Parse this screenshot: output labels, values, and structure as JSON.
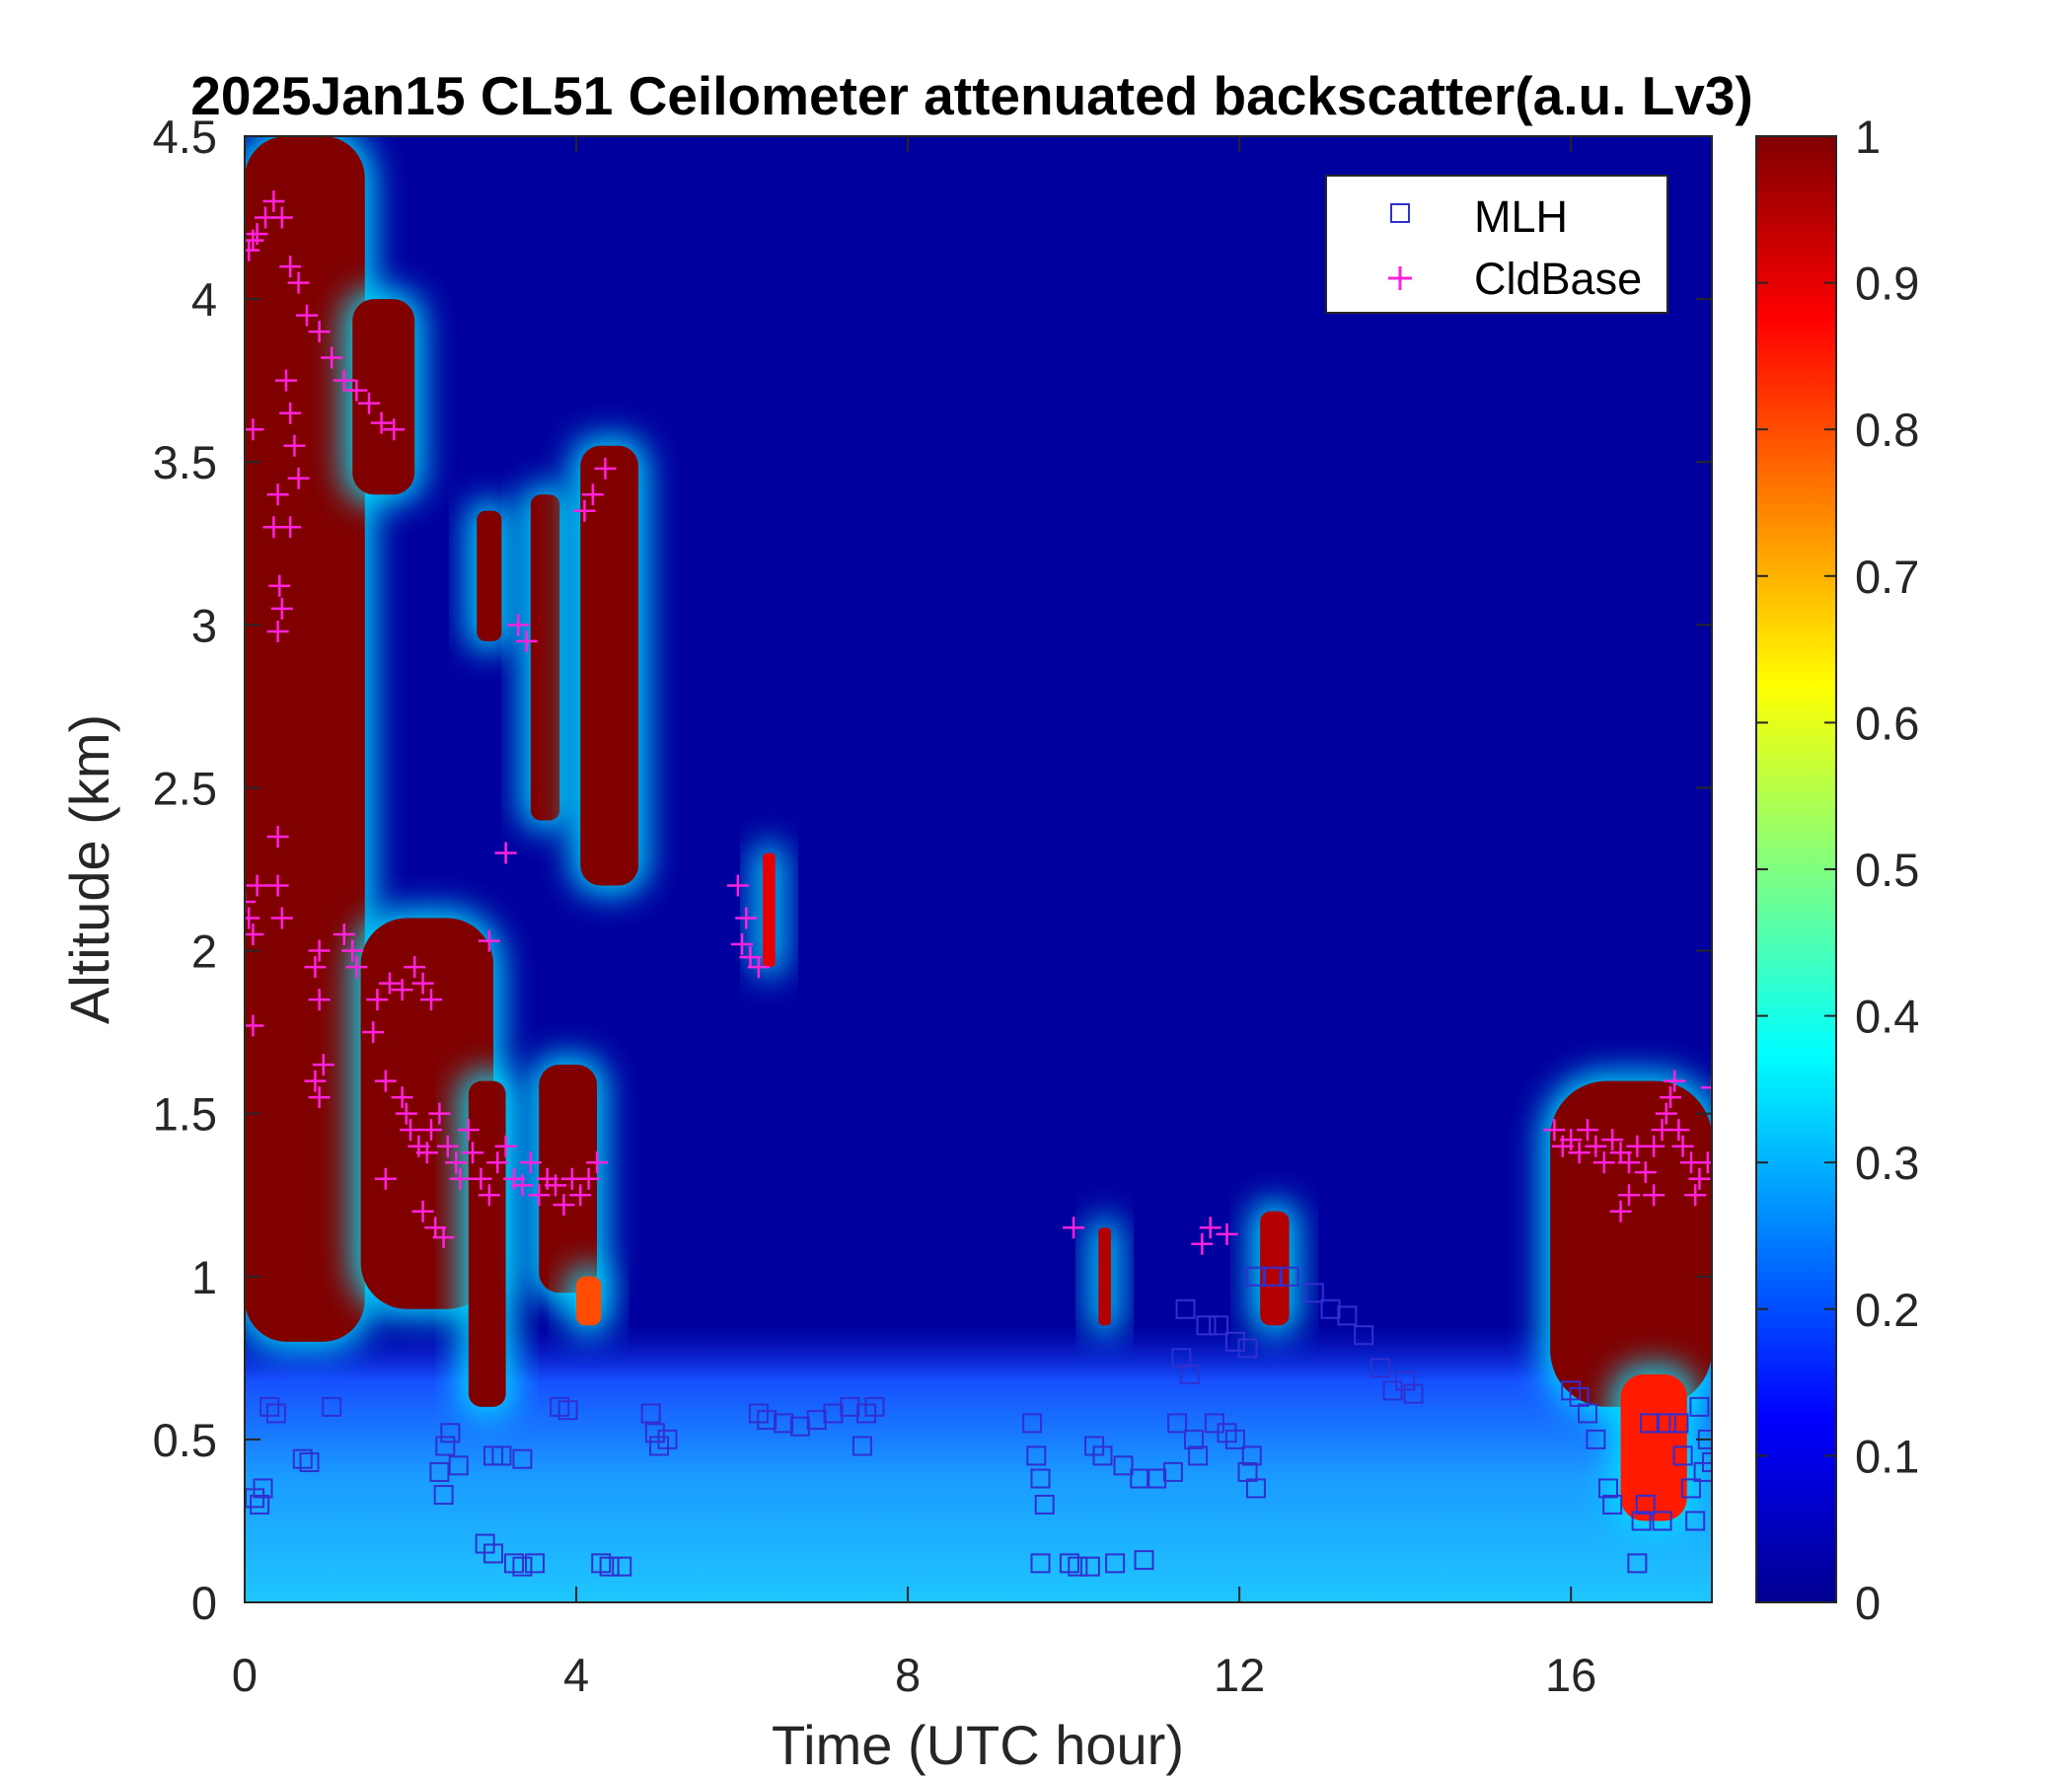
{
  "chart_data": {
    "type": "heatmap",
    "title": "2025Jan15 CL51 Ceilometer attenuated backscatter(a.u. Lv3)",
    "xlabel": "Time (UTC hour)",
    "ylabel": "Altitude (km)",
    "xlim": [
      0,
      17.7
    ],
    "ylim": [
      0,
      4.5
    ],
    "x_ticks": [
      0,
      4,
      8,
      12,
      16
    ],
    "y_ticks": [
      0,
      0.5,
      1,
      1.5,
      2,
      2.5,
      3,
      3.5,
      4,
      4.5
    ],
    "x_tick_labels": [
      "0",
      "4",
      "8",
      "12",
      "16"
    ],
    "y_tick_labels": [
      "0",
      "0.5",
      "1",
      "1.5",
      "2",
      "2.5",
      "3",
      "3.5",
      "4",
      "4.5"
    ],
    "colorbar": {
      "colormap": "jet",
      "range": [
        0,
        1
      ],
      "ticks": [
        0,
        0.1,
        0.2,
        0.3,
        0.4,
        0.5,
        0.6,
        0.7,
        0.8,
        0.9,
        1
      ],
      "tick_labels": [
        "0",
        "0.1",
        "0.2",
        "0.3",
        "0.4",
        "0.5",
        "0.6",
        "0.7",
        "0.8",
        "0.9",
        "1"
      ]
    },
    "grid": false,
    "legend_position": "top-right",
    "legend": [
      {
        "name": "MLH",
        "marker": "square",
        "color": "#3030d0"
      },
      {
        "name": "CldBase",
        "marker": "plus",
        "color": "#ff22dd"
      }
    ],
    "background_value": 0.02,
    "surface_layer": {
      "top_km": 0.85,
      "base_value": 0.3
    },
    "regions": [
      {
        "x0": 0.0,
        "x1": 1.45,
        "y0": 0.8,
        "y1": 4.5,
        "value": 1.0
      },
      {
        "x0": 1.3,
        "x1": 2.05,
        "y0": 3.4,
        "y1": 4.0,
        "value": 1.0
      },
      {
        "x0": 1.4,
        "x1": 3.0,
        "y0": 0.9,
        "y1": 2.1,
        "value": 1.0
      },
      {
        "x0": 2.7,
        "x1": 3.15,
        "y0": 0.6,
        "y1": 1.6,
        "value": 1.0
      },
      {
        "x0": 3.55,
        "x1": 4.25,
        "y0": 0.95,
        "y1": 1.65,
        "value": 1.0
      },
      {
        "x0": 2.8,
        "x1": 3.1,
        "y0": 2.95,
        "y1": 3.35,
        "value": 1.0
      },
      {
        "x0": 3.45,
        "x1": 3.8,
        "y0": 2.4,
        "y1": 3.4,
        "value": 1.0
      },
      {
        "x0": 4.05,
        "x1": 4.75,
        "y0": 2.2,
        "y1": 3.55,
        "value": 1.0
      },
      {
        "x0": 4.0,
        "x1": 4.3,
        "y0": 0.85,
        "y1": 1.0,
        "value": 0.8
      },
      {
        "x0": 6.25,
        "x1": 6.4,
        "y0": 1.95,
        "y1": 2.3,
        "value": 0.9
      },
      {
        "x0": 10.3,
        "x1": 10.45,
        "y0": 0.85,
        "y1": 1.15,
        "value": 0.95
      },
      {
        "x0": 12.25,
        "x1": 12.6,
        "y0": 0.85,
        "y1": 1.2,
        "value": 0.95
      },
      {
        "x0": 15.75,
        "x1": 17.7,
        "y0": 0.6,
        "y1": 1.6,
        "value": 1.0
      },
      {
        "x0": 16.6,
        "x1": 17.4,
        "y0": 0.25,
        "y1": 0.7,
        "value": 0.85
      }
    ],
    "series": [
      {
        "name": "MLH",
        "points": [
          [
            0.12,
            0.32
          ],
          [
            0.18,
            0.3
          ],
          [
            0.22,
            0.35
          ],
          [
            0.3,
            0.6
          ],
          [
            0.38,
            0.58
          ],
          [
            0.7,
            0.44
          ],
          [
            0.78,
            0.43
          ],
          [
            1.05,
            0.6
          ],
          [
            2.35,
            0.4
          ],
          [
            2.4,
            0.33
          ],
          [
            2.42,
            0.48
          ],
          [
            2.48,
            0.52
          ],
          [
            2.58,
            0.42
          ],
          [
            3.0,
            0.45
          ],
          [
            3.1,
            0.45
          ],
          [
            3.35,
            0.44
          ],
          [
            2.9,
            0.18
          ],
          [
            3.0,
            0.15
          ],
          [
            3.25,
            0.12
          ],
          [
            3.35,
            0.11
          ],
          [
            3.5,
            0.12
          ],
          [
            3.8,
            0.6
          ],
          [
            3.9,
            0.59
          ],
          [
            4.3,
            0.12
          ],
          [
            4.4,
            0.11
          ],
          [
            4.55,
            0.11
          ],
          [
            4.9,
            0.58
          ],
          [
            4.95,
            0.52
          ],
          [
            5.0,
            0.48
          ],
          [
            5.1,
            0.5
          ],
          [
            6.2,
            0.58
          ],
          [
            6.3,
            0.56
          ],
          [
            6.5,
            0.55
          ],
          [
            6.7,
            0.54
          ],
          [
            6.9,
            0.56
          ],
          [
            7.1,
            0.58
          ],
          [
            7.3,
            0.6
          ],
          [
            7.5,
            0.58
          ],
          [
            7.6,
            0.6
          ],
          [
            7.45,
            0.48
          ],
          [
            9.5,
            0.55
          ],
          [
            9.55,
            0.45
          ],
          [
            9.6,
            0.38
          ],
          [
            9.65,
            0.3
          ],
          [
            9.6,
            0.12
          ],
          [
            9.95,
            0.12
          ],
          [
            10.05,
            0.11
          ],
          [
            10.2,
            0.11
          ],
          [
            10.5,
            0.12
          ],
          [
            10.85,
            0.13
          ],
          [
            10.25,
            0.48
          ],
          [
            10.35,
            0.45
          ],
          [
            10.6,
            0.42
          ],
          [
            10.8,
            0.38
          ],
          [
            11.0,
            0.38
          ],
          [
            11.2,
            0.4
          ],
          [
            11.25,
            0.55
          ],
          [
            11.3,
            0.75
          ],
          [
            11.35,
            0.9
          ],
          [
            11.4,
            0.7
          ],
          [
            11.45,
            0.5
          ],
          [
            11.5,
            0.45
          ],
          [
            11.6,
            0.85
          ],
          [
            11.75,
            0.85
          ],
          [
            11.95,
            0.8
          ],
          [
            12.1,
            0.78
          ],
          [
            11.7,
            0.55
          ],
          [
            11.85,
            0.52
          ],
          [
            11.95,
            0.5
          ],
          [
            12.1,
            0.4
          ],
          [
            12.15,
            0.45
          ],
          [
            12.2,
            0.35
          ],
          [
            12.2,
            1.0
          ],
          [
            12.4,
            1.0
          ],
          [
            12.6,
            1.0
          ],
          [
            12.9,
            0.95
          ],
          [
            13.1,
            0.9
          ],
          [
            13.3,
            0.88
          ],
          [
            13.5,
            0.82
          ],
          [
            13.7,
            0.72
          ],
          [
            13.85,
            0.65
          ],
          [
            14.0,
            0.68
          ],
          [
            14.1,
            0.64
          ],
          [
            16.0,
            0.65
          ],
          [
            16.1,
            0.63
          ],
          [
            16.2,
            0.58
          ],
          [
            16.3,
            0.5
          ],
          [
            16.45,
            0.35
          ],
          [
            16.5,
            0.3
          ],
          [
            16.8,
            0.12
          ],
          [
            16.85,
            0.25
          ],
          [
            16.9,
            0.3
          ],
          [
            16.95,
            0.55
          ],
          [
            17.1,
            0.25
          ],
          [
            17.15,
            0.55
          ],
          [
            17.3,
            0.55
          ],
          [
            17.35,
            0.45
          ],
          [
            17.45,
            0.35
          ],
          [
            17.5,
            0.25
          ],
          [
            17.55,
            0.6
          ],
          [
            17.6,
            0.4
          ],
          [
            17.65,
            0.5
          ],
          [
            17.7,
            0.43
          ]
        ]
      },
      {
        "name": "CldBase",
        "points": [
          [
            0.05,
            4.15
          ],
          [
            0.1,
            4.18
          ],
          [
            0.15,
            4.2
          ],
          [
            0.25,
            4.25
          ],
          [
            0.35,
            4.3
          ],
          [
            0.45,
            4.25
          ],
          [
            0.55,
            4.1
          ],
          [
            0.65,
            4.05
          ],
          [
            0.75,
            3.95
          ],
          [
            0.9,
            3.9
          ],
          [
            1.05,
            3.82
          ],
          [
            1.2,
            3.75
          ],
          [
            1.35,
            3.72
          ],
          [
            1.5,
            3.68
          ],
          [
            1.65,
            3.62
          ],
          [
            1.8,
            3.6
          ],
          [
            0.5,
            3.75
          ],
          [
            0.55,
            3.65
          ],
          [
            0.6,
            3.55
          ],
          [
            0.65,
            3.45
          ],
          [
            0.4,
            3.4
          ],
          [
            0.35,
            3.3
          ],
          [
            0.55,
            3.3
          ],
          [
            0.42,
            3.12
          ],
          [
            0.45,
            3.05
          ],
          [
            0.4,
            2.98
          ],
          [
            0.1,
            3.6
          ],
          [
            0.0,
            2.15
          ],
          [
            0.05,
            2.1
          ],
          [
            0.1,
            2.05
          ],
          [
            0.15,
            2.2
          ],
          [
            0.4,
            2.35
          ],
          [
            0.4,
            2.2
          ],
          [
            0.45,
            2.1
          ],
          [
            0.9,
            2.0
          ],
          [
            0.85,
            1.95
          ],
          [
            1.2,
            2.05
          ],
          [
            1.3,
            2.0
          ],
          [
            1.35,
            1.95
          ],
          [
            0.1,
            1.77
          ],
          [
            0.9,
            1.85
          ],
          [
            0.95,
            1.65
          ],
          [
            0.85,
            1.6
          ],
          [
            0.9,
            1.55
          ],
          [
            1.55,
            1.75
          ],
          [
            1.6,
            1.85
          ],
          [
            1.75,
            1.9
          ],
          [
            1.9,
            1.88
          ],
          [
            2.05,
            1.95
          ],
          [
            2.15,
            1.9
          ],
          [
            2.25,
            1.85
          ],
          [
            1.7,
            1.6
          ],
          [
            1.9,
            1.55
          ],
          [
            1.95,
            1.5
          ],
          [
            2.0,
            1.45
          ],
          [
            2.1,
            1.4
          ],
          [
            2.2,
            1.38
          ],
          [
            2.25,
            1.45
          ],
          [
            2.35,
            1.5
          ],
          [
            2.45,
            1.4
          ],
          [
            2.55,
            1.35
          ],
          [
            2.6,
            1.3
          ],
          [
            2.7,
            1.45
          ],
          [
            2.75,
            1.38
          ],
          [
            2.85,
            1.3
          ],
          [
            2.95,
            1.25
          ],
          [
            3.05,
            1.35
          ],
          [
            3.15,
            1.4
          ],
          [
            3.25,
            1.3
          ],
          [
            3.35,
            1.28
          ],
          [
            3.45,
            1.35
          ],
          [
            3.55,
            1.25
          ],
          [
            3.65,
            1.3
          ],
          [
            3.75,
            1.28
          ],
          [
            3.85,
            1.22
          ],
          [
            3.95,
            1.3
          ],
          [
            4.05,
            1.25
          ],
          [
            4.15,
            1.3
          ],
          [
            4.25,
            1.35
          ],
          [
            1.7,
            1.3
          ],
          [
            2.15,
            1.2
          ],
          [
            2.3,
            1.15
          ],
          [
            2.4,
            1.12
          ],
          [
            3.15,
            2.3
          ],
          [
            2.95,
            2.03
          ],
          [
            3.3,
            3.0
          ],
          [
            3.4,
            2.95
          ],
          [
            4.1,
            3.35
          ],
          [
            4.2,
            3.4
          ],
          [
            4.35,
            3.48
          ],
          [
            5.95,
            2.2
          ],
          [
            6.05,
            2.1
          ],
          [
            6.0,
            2.02
          ],
          [
            6.1,
            1.98
          ],
          [
            6.2,
            1.95
          ],
          [
            10.0,
            1.15
          ],
          [
            11.55,
            1.1
          ],
          [
            11.65,
            1.15
          ],
          [
            11.85,
            1.13
          ],
          [
            15.8,
            1.45
          ],
          [
            15.9,
            1.4
          ],
          [
            16.0,
            1.42
          ],
          [
            16.1,
            1.38
          ],
          [
            16.2,
            1.45
          ],
          [
            16.3,
            1.4
          ],
          [
            16.4,
            1.35
          ],
          [
            16.5,
            1.42
          ],
          [
            16.6,
            1.38
          ],
          [
            16.7,
            1.35
          ],
          [
            16.8,
            1.4
          ],
          [
            16.9,
            1.32
          ],
          [
            17.0,
            1.4
          ],
          [
            17.1,
            1.45
          ],
          [
            17.15,
            1.5
          ],
          [
            17.2,
            1.55
          ],
          [
            17.25,
            1.6
          ],
          [
            17.3,
            1.45
          ],
          [
            17.35,
            1.4
          ],
          [
            17.45,
            1.35
          ],
          [
            17.55,
            1.3
          ],
          [
            17.65,
            1.35
          ],
          [
            17.7,
            1.58
          ],
          [
            16.6,
            1.2
          ],
          [
            16.7,
            1.25
          ],
          [
            17.0,
            1.25
          ],
          [
            17.5,
            1.25
          ]
        ]
      }
    ]
  }
}
